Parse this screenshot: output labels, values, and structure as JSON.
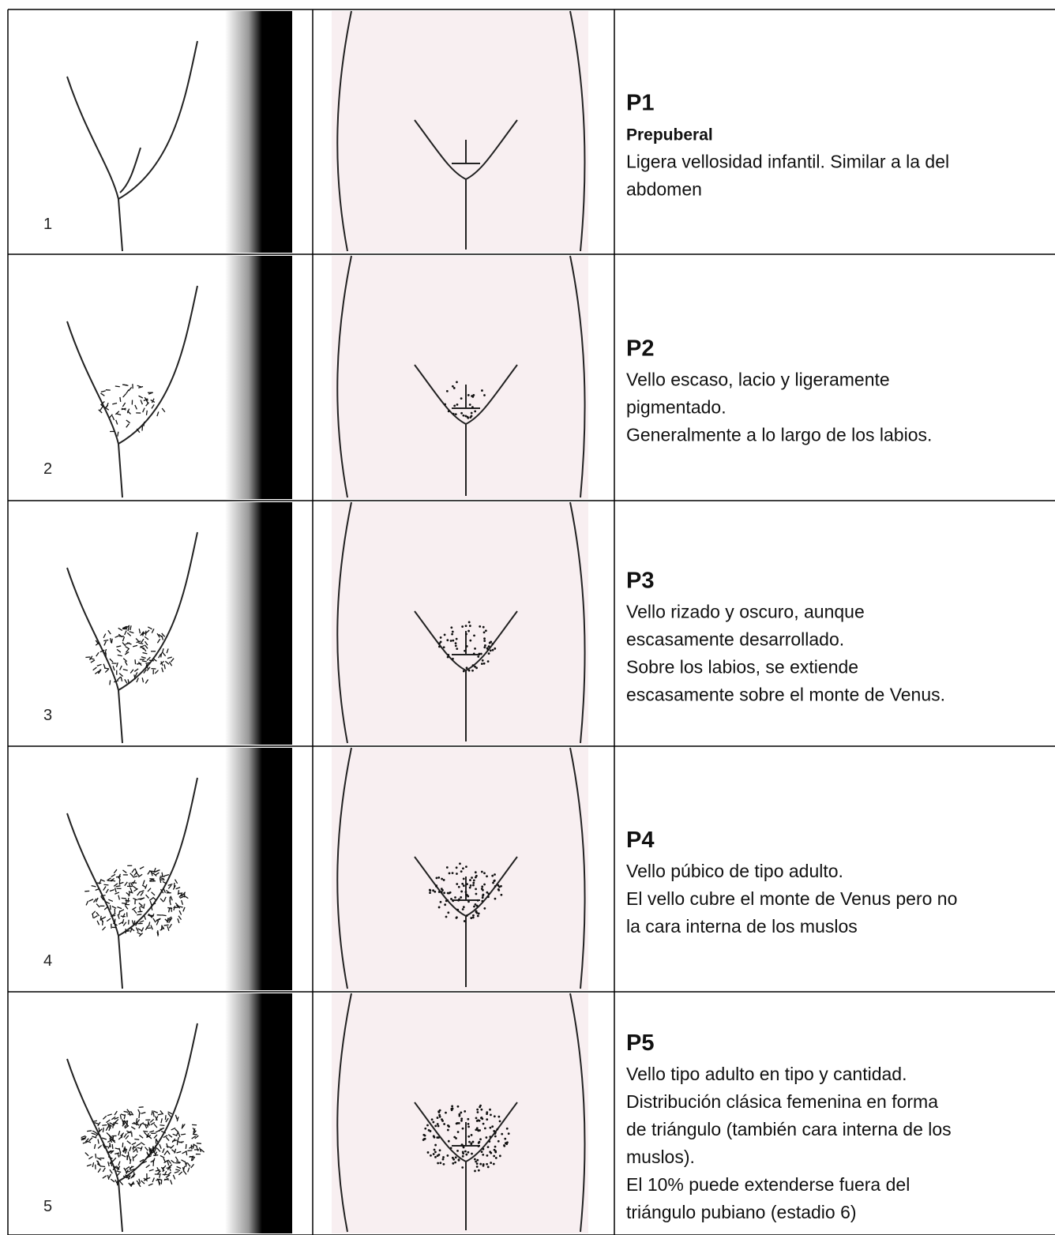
{
  "rows": [
    {
      "figure_label": "1",
      "stage": "P1",
      "subtitle": "Prepuberal",
      "lines": [
        "Ligera vellosidad infantil. Similar a la del",
        "abdomen"
      ]
    },
    {
      "figure_label": "2",
      "stage": "P2",
      "lines": [
        "Vello escaso, lacio y ligeramente",
        "pigmentado.",
        "Generalmente a lo largo de los labios."
      ]
    },
    {
      "figure_label": "3",
      "stage": "P3",
      "lines": [
        "Vello rizado y oscuro, aunque",
        "escasamente desarrollado.",
        "Sobre los labios, se extiende",
        "escasamente sobre el monte de Venus."
      ]
    },
    {
      "figure_label": "4",
      "stage": "P4",
      "lines": [
        "Vello púbico de tipo adulto.",
        "El vello cubre el monte de Venus pero no",
        "la cara interna de los muslos"
      ]
    },
    {
      "figure_label": "5",
      "stage": "P5",
      "lines": [
        "Vello tipo adulto en tipo y cantidad.",
        "Distribución clásica femenina en forma",
        "de triángulo (también cara interna de los",
        "muslos).",
        "El 10% puede extenderse fuera del",
        "triángulo pubiano (estadio 6)"
      ]
    }
  ]
}
